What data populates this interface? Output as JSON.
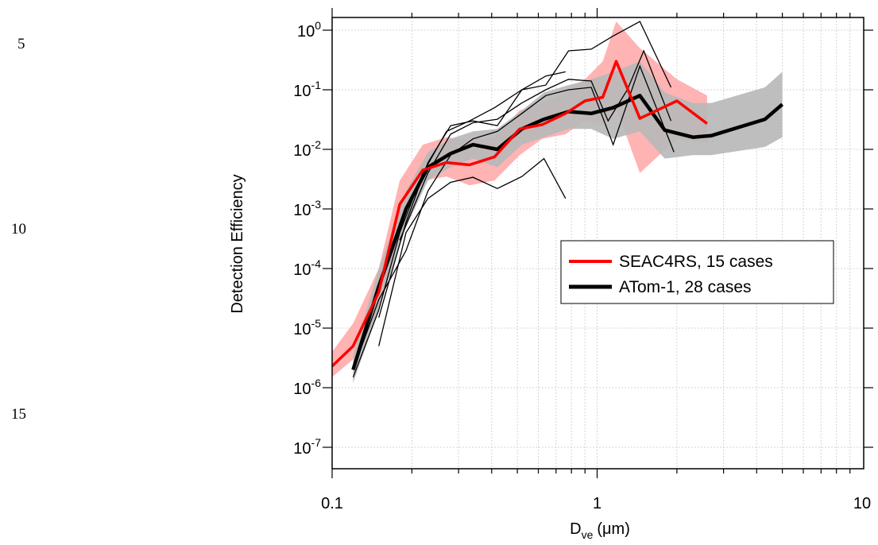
{
  "line_numbers": [
    "5",
    "10",
    "15"
  ],
  "chart_data": {
    "type": "line",
    "title": "",
    "xlabel_main": "D",
    "xlabel_sub": "ve",
    "xlabel_unit": "(μm)",
    "ylabel": "Detection Efficiency",
    "x_scale": "log",
    "y_scale": "log",
    "xlim": [
      0.1,
      10
    ],
    "ylim": [
      1e-07,
      1
    ],
    "x_ticks": [
      {
        "value": 0.1,
        "label": "0.1"
      },
      {
        "value": 1,
        "label": "1"
      },
      {
        "value": 10,
        "label": "10"
      }
    ],
    "y_ticks": [
      {
        "value": 1,
        "exp": "0"
      },
      {
        "value": 0.1,
        "exp": "-1"
      },
      {
        "value": 0.01,
        "exp": "-2"
      },
      {
        "value": 0.001,
        "exp": "-3"
      },
      {
        "value": 0.0001,
        "exp": "-4"
      },
      {
        "value": 1e-05,
        "exp": "-5"
      },
      {
        "value": 1e-06,
        "exp": "-6"
      },
      {
        "value": 1e-07,
        "exp": "-7"
      }
    ],
    "grid": true,
    "legend_position": "center-right",
    "series": [
      {
        "name": "SEAC4RS, 15 cases",
        "color": "#ff0000",
        "band_color": "#ffb3b3",
        "x": [
          0.1,
          0.12,
          0.15,
          0.18,
          0.22,
          0.27,
          0.33,
          0.41,
          0.51,
          0.62,
          0.76,
          0.9,
          1.05,
          1.18,
          1.45,
          2.0,
          2.6
        ],
        "y": [
          2.3e-06,
          5e-06,
          4e-05,
          0.0012,
          0.0045,
          0.006,
          0.0055,
          0.0075,
          0.022,
          0.026,
          0.04,
          0.065,
          0.075,
          0.3,
          0.033,
          0.065,
          0.027
        ],
        "band_lower": [
          1.5e-06,
          3e-06,
          2e-05,
          0.0005,
          0.003,
          0.0035,
          0.0025,
          0.003,
          0.008,
          0.015,
          0.018,
          0.03,
          0.025,
          0.05,
          0.004,
          0.015,
          0.013
        ],
        "band_upper": [
          4e-06,
          1.2e-05,
          0.0001,
          0.003,
          0.012,
          0.016,
          0.014,
          0.016,
          0.045,
          0.06,
          0.09,
          0.15,
          0.3,
          1.4,
          0.5,
          0.15,
          0.08
        ]
      },
      {
        "name": "ATom-1, 28 cases",
        "color": "#000000",
        "band_color": "#b8b8b8",
        "x": [
          0.12,
          0.15,
          0.19,
          0.23,
          0.28,
          0.34,
          0.42,
          0.52,
          0.63,
          0.78,
          0.95,
          1.15,
          1.45,
          1.8,
          2.3,
          2.7,
          4.3,
          5.0
        ],
        "y": [
          2e-06,
          5e-05,
          0.001,
          0.005,
          0.0085,
          0.012,
          0.01,
          0.022,
          0.032,
          0.043,
          0.04,
          0.05,
          0.08,
          0.021,
          0.016,
          0.017,
          0.032,
          0.057
        ],
        "band_lower": [
          1.2e-06,
          2e-05,
          0.0005,
          0.003,
          0.005,
          0.007,
          0.005,
          0.012,
          0.016,
          0.022,
          0.022,
          0.015,
          0.02,
          0.007,
          0.008,
          0.008,
          0.011,
          0.016
        ],
        "band_upper": [
          3.5e-06,
          0.0001,
          0.002,
          0.009,
          0.015,
          0.02,
          0.022,
          0.045,
          0.09,
          0.12,
          0.15,
          0.2,
          0.3,
          0.09,
          0.06,
          0.06,
          0.11,
          0.2
        ]
      }
    ],
    "individual_cases": [
      {
        "x": [
          0.15,
          0.19,
          0.23,
          0.28,
          0.34,
          0.42,
          0.52,
          0.63,
          0.76
        ],
        "y": [
          5e-06,
          0.0004,
          0.0015,
          0.0028,
          0.0034,
          0.0022,
          0.0035,
          0.007,
          0.0015
        ]
      },
      {
        "x": [
          0.12,
          0.15,
          0.18,
          0.22,
          0.27,
          0.33,
          0.41,
          0.52,
          0.64,
          0.76
        ],
        "y": [
          1.5e-06,
          2e-05,
          0.0004,
          0.004,
          0.02,
          0.03,
          0.05,
          0.1,
          0.17,
          0.2
        ]
      },
      {
        "x": [
          0.15,
          0.19,
          0.23,
          0.28,
          0.34,
          0.42,
          0.52,
          0.64,
          0.78,
          0.95,
          1.15,
          1.45,
          1.9
        ],
        "y": [
          1.5e-05,
          0.0006,
          0.006,
          0.025,
          0.03,
          0.025,
          0.1,
          0.12,
          0.45,
          0.48,
          0.8,
          1.4,
          0.11
        ]
      },
      {
        "x": [
          0.18,
          0.23,
          0.28,
          0.34,
          0.42,
          0.52,
          0.64,
          0.78,
          0.95,
          1.1,
          1.3,
          1.5,
          1.9
        ],
        "y": [
          0.0003,
          0.004,
          0.018,
          0.028,
          0.032,
          0.06,
          0.1,
          0.15,
          0.14,
          0.03,
          0.1,
          0.45,
          0.03
        ]
      },
      {
        "x": [
          0.12,
          0.15,
          0.19,
          0.23,
          0.28,
          0.34,
          0.42,
          0.52,
          0.64,
          0.78,
          0.95,
          1.15,
          1.45,
          1.95
        ],
        "y": [
          2e-06,
          3e-05,
          0.0002,
          0.002,
          0.008,
          0.015,
          0.02,
          0.04,
          0.08,
          0.1,
          0.11,
          0.012,
          0.25,
          0.009
        ]
      }
    ]
  }
}
